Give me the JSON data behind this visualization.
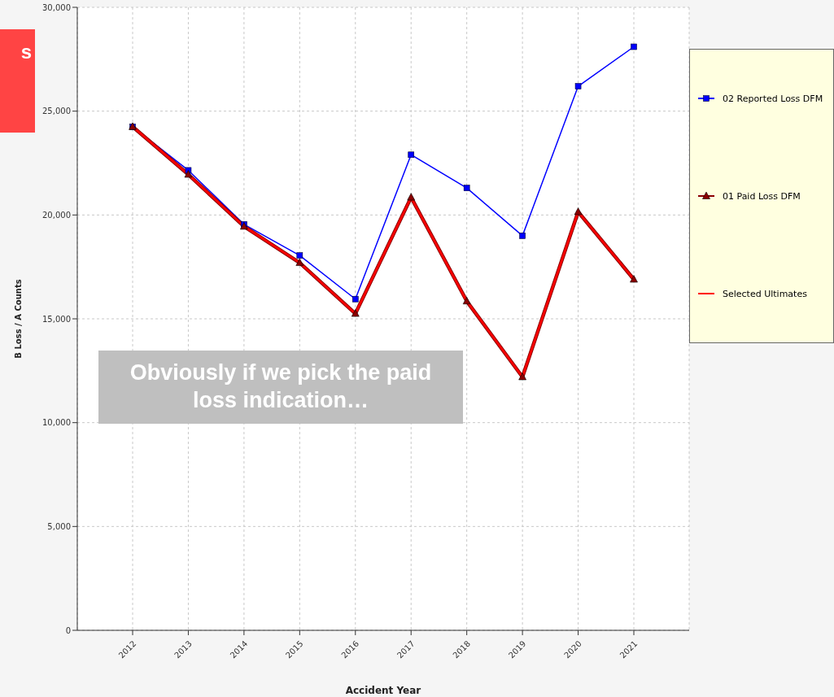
{
  "chart_data": {
    "type": "line",
    "xlabel": "Accident Year",
    "ylabel": "B Loss / A Counts",
    "categories": [
      "2012",
      "2013",
      "2014",
      "2015",
      "2016",
      "2017",
      "2018",
      "2019",
      "2020",
      "2021"
    ],
    "series": [
      {
        "name": "02 Reported Loss DFM",
        "color": "#0000ff",
        "marker": "square",
        "values": [
          24250,
          22150,
          19550,
          18050,
          15950,
          22900,
          21300,
          19000,
          26200,
          28100
        ]
      },
      {
        "name": "01 Paid Loss DFM",
        "color": "#8b0000",
        "marker": "triangle",
        "values": [
          24250,
          21950,
          19450,
          17700,
          15250,
          20850,
          15850,
          12200,
          20150,
          16900
        ]
      },
      {
        "name": "Selected Ultimates",
        "color": "#ff0000",
        "marker": "none",
        "values": [
          24250,
          21950,
          19450,
          17700,
          15250,
          20850,
          15850,
          12200,
          20150,
          16900
        ]
      }
    ],
    "ylim": [
      0,
      30000
    ],
    "yticks": [
      {
        "value": 0,
        "label": "0"
      },
      {
        "value": 5000,
        "label": "5,000"
      },
      {
        "value": 10000,
        "label": "10,000"
      },
      {
        "value": 15000,
        "label": "15,000"
      },
      {
        "value": 20000,
        "label": "20,000"
      },
      {
        "value": 25000,
        "label": "25,000"
      },
      {
        "value": 30000,
        "label": "30,000"
      }
    ],
    "grid": true,
    "line_style": "solid",
    "legend": "right",
    "annotations": [
      "s",
      "Obviously if we pick the paid loss indication…"
    ]
  }
}
